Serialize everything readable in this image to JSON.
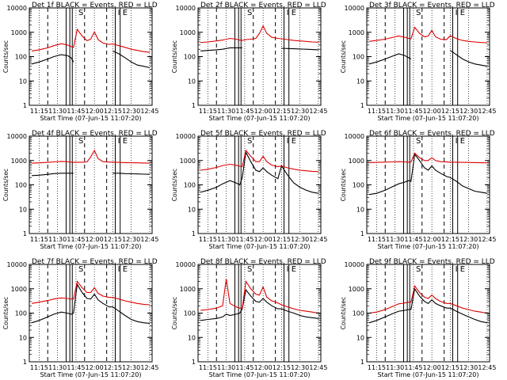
{
  "figure": {
    "xlabel": "Start Time (07-Jun-15 11:07:20)",
    "ylabel": "Counts/sec",
    "xticks": [
      "11:15",
      "11:30",
      "11:45",
      "12:00",
      "12:15",
      "12:30",
      "12:45"
    ],
    "yticks": [
      "1",
      "10",
      "100",
      "1000",
      "10000"
    ],
    "markers": {
      "S": "S",
      "I": "I",
      "E": "E"
    },
    "colors": {
      "events": "#000000",
      "lld": "#dd0000",
      "axes": "#000000"
    }
  },
  "chart_data": [
    {
      "type": "line",
      "title": "Det 1f BLACK = Events, RED = LLD",
      "xlabel": "Start Time (07-Jun-15 11:07:20)",
      "ylabel": "Counts/sec",
      "ylim": [
        1,
        10000
      ],
      "yscale": "log",
      "grid": "dotted vertical",
      "x": [
        "11:09",
        "11:15",
        "11:22",
        "11:27",
        "11:33",
        "11:38",
        "11:41",
        "11:43",
        "11:46",
        "11:50",
        "11:54",
        "11:57",
        "12:00",
        "12:03",
        "12:07",
        "12:12",
        "12:15",
        "12:20",
        "12:25",
        "12:30",
        "12:35",
        "12:40",
        "12:45"
      ],
      "series": [
        {
          "name": "Events",
          "values": [
            50,
            60,
            80,
            100,
            120,
            110,
            90,
            60,
            null,
            null,
            null,
            null,
            null,
            null,
            null,
            null,
            170,
            130,
            90,
            60,
            45,
            40,
            35
          ]
        },
        {
          "name": "LLD",
          "values": [
            170,
            190,
            230,
            280,
            340,
            300,
            260,
            240,
            1300,
            700,
            450,
            520,
            1050,
            500,
            360,
            320,
            330,
            280,
            240,
            200,
            180,
            160,
            150
          ]
        }
      ]
    },
    {
      "type": "line",
      "title": "Det 2f BLACK = Events, RED = LLD",
      "xlabel": "Start Time (07-Jun-15 11:07:20)",
      "ylabel": "Counts/sec",
      "ylim": [
        1,
        10000
      ],
      "yscale": "log",
      "grid": "dotted vertical",
      "x": [
        "11:09",
        "11:15",
        "11:22",
        "11:27",
        "11:33",
        "11:38",
        "11:41",
        "11:43",
        "11:46",
        "11:50",
        "11:54",
        "11:57",
        "12:00",
        "12:03",
        "12:07",
        "12:12",
        "12:15",
        "12:20",
        "12:25",
        "12:30",
        "12:35",
        "12:40",
        "12:45"
      ],
      "series": [
        {
          "name": "Events",
          "values": [
            170,
            180,
            190,
            200,
            230,
            230,
            230,
            230,
            null,
            null,
            null,
            null,
            null,
            null,
            null,
            null,
            220,
            215,
            210,
            205,
            200,
            195,
            190
          ]
        },
        {
          "name": "LLD",
          "values": [
            380,
            400,
            440,
            480,
            560,
            520,
            480,
            460,
            500,
            520,
            560,
            900,
            1800,
            900,
            620,
            560,
            540,
            500,
            460,
            440,
            420,
            400,
            390
          ]
        }
      ]
    },
    {
      "type": "line",
      "title": "Det 3f BLACK = Events, RED = LLD",
      "xlabel": "Start Time (07-Jun-15 11:07:20)",
      "ylabel": "Counts/sec",
      "ylim": [
        1,
        10000
      ],
      "yscale": "log",
      "grid": "dotted vertical",
      "x": [
        "11:09",
        "11:15",
        "11:22",
        "11:27",
        "11:33",
        "11:38",
        "11:41",
        "11:43",
        "11:46",
        "11:50",
        "11:54",
        "11:57",
        "12:00",
        "12:03",
        "12:07",
        "12:12",
        "12:15",
        "12:20",
        "12:25",
        "12:30",
        "12:35",
        "12:40",
        "12:45"
      ],
      "series": [
        {
          "name": "Events",
          "values": [
            50,
            60,
            80,
            100,
            130,
            110,
            90,
            80,
            null,
            null,
            null,
            null,
            null,
            null,
            null,
            null,
            180,
            120,
            80,
            60,
            50,
            45,
            40
          ]
        },
        {
          "name": "LLD",
          "values": [
            420,
            460,
            520,
            600,
            700,
            620,
            560,
            540,
            1600,
            900,
            650,
            700,
            1200,
            650,
            520,
            500,
            720,
            550,
            460,
            420,
            400,
            380,
            370
          ]
        }
      ]
    },
    {
      "type": "line",
      "title": "Det 4f BLACK = Events, RED = LLD",
      "xlabel": "Start Time (07-Jun-15 11:07:20)",
      "ylabel": "Counts/sec",
      "ylim": [
        1,
        10000
      ],
      "yscale": "log",
      "grid": "dotted vertical",
      "x": [
        "11:09",
        "11:15",
        "11:22",
        "11:27",
        "11:33",
        "11:38",
        "11:41",
        "11:43",
        "11:46",
        "11:50",
        "11:54",
        "11:57",
        "12:00",
        "12:03",
        "12:07",
        "12:12",
        "12:15",
        "12:20",
        "12:25",
        "12:30",
        "12:35",
        "12:40",
        "12:45"
      ],
      "series": [
        {
          "name": "Events",
          "values": [
            240,
            250,
            270,
            290,
            300,
            300,
            300,
            300,
            null,
            null,
            null,
            null,
            null,
            null,
            null,
            null,
            300,
            300,
            290,
            285,
            280,
            275,
            270
          ]
        },
        {
          "name": "LLD",
          "values": [
            780,
            800,
            840,
            880,
            920,
            900,
            860,
            840,
            850,
            850,
            880,
            1400,
            2600,
            1200,
            900,
            860,
            860,
            840,
            820,
            810,
            800,
            790,
            780
          ]
        }
      ]
    },
    {
      "type": "line",
      "title": "Det 5f BLACK = Events, RED = LLD",
      "xlabel": "Start Time (07-Jun-15 11:07:20)",
      "ylabel": "Counts/sec",
      "ylim": [
        1,
        10000
      ],
      "yscale": "log",
      "grid": "dotted vertical",
      "x": [
        "11:09",
        "11:15",
        "11:22",
        "11:27",
        "11:33",
        "11:38",
        "11:41",
        "11:43",
        "11:46",
        "11:50",
        "11:54",
        "11:57",
        "12:00",
        "12:03",
        "12:07",
        "12:12",
        "12:15",
        "12:20",
        "12:25",
        "12:30",
        "12:35",
        "12:40",
        "12:45"
      ],
      "series": [
        {
          "name": "Events",
          "values": [
            50,
            60,
            80,
            110,
            150,
            120,
            100,
            200,
            2200,
            900,
            400,
            350,
            500,
            350,
            250,
            180,
            600,
            250,
            120,
            80,
            60,
            50,
            45
          ]
        },
        {
          "name": "LLD",
          "values": [
            400,
            440,
            520,
            620,
            700,
            640,
            580,
            560,
            2600,
            1500,
            900,
            900,
            1500,
            900,
            650,
            560,
            600,
            500,
            440,
            400,
            380,
            360,
            350
          ]
        }
      ]
    },
    {
      "type": "line",
      "title": "Det 6f BLACK = Events, RED = LLD",
      "xlabel": "Start Time (07-Jun-15 11:07:20)",
      "ylabel": "Counts/sec",
      "ylim": [
        1,
        10000
      ],
      "yscale": "log",
      "grid": "dotted vertical",
      "x": [
        "11:09",
        "11:15",
        "11:22",
        "11:27",
        "11:33",
        "11:38",
        "11:41",
        "11:43",
        "11:46",
        "11:50",
        "11:54",
        "11:57",
        "12:00",
        "12:03",
        "12:07",
        "12:12",
        "12:15",
        "12:20",
        "12:25",
        "12:30",
        "12:35",
        "12:40",
        "12:45"
      ],
      "series": [
        {
          "name": "Events",
          "values": [
            40,
            45,
            60,
            80,
            110,
            130,
            150,
            140,
            1800,
            1000,
            500,
            400,
            600,
            400,
            300,
            220,
            200,
            140,
            90,
            70,
            55,
            50,
            45
          ]
        },
        {
          "name": "LLD",
          "values": [
            820,
            840,
            860,
            880,
            900,
            880,
            860,
            860,
            2000,
            1300,
            1000,
            1000,
            1300,
            1000,
            900,
            870,
            860,
            850,
            840,
            830,
            820,
            810,
            800
          ]
        }
      ]
    },
    {
      "type": "line",
      "title": "Det 7f BLACK = Events, RED = LLD",
      "xlabel": "Start Time (07-Jun-15 11:07:20)",
      "ylabel": "Counts/sec",
      "ylim": [
        1,
        10000
      ],
      "yscale": "log",
      "grid": "dotted vertical",
      "x": [
        "11:09",
        "11:15",
        "11:22",
        "11:27",
        "11:33",
        "11:38",
        "11:41",
        "11:43",
        "11:46",
        "11:50",
        "11:54",
        "11:57",
        "12:00",
        "12:03",
        "12:07",
        "12:12",
        "12:15",
        "12:20",
        "12:25",
        "12:30",
        "12:35",
        "12:40",
        "12:45"
      ],
      "series": [
        {
          "name": "Events",
          "values": [
            40,
            50,
            70,
            90,
            110,
            100,
            90,
            100,
            1500,
            700,
            400,
            380,
            600,
            350,
            250,
            180,
            180,
            120,
            80,
            55,
            45,
            40,
            38
          ]
        },
        {
          "name": "LLD",
          "values": [
            250,
            280,
            330,
            380,
            420,
            400,
            380,
            380,
            2000,
            1100,
            700,
            700,
            1100,
            650,
            500,
            440,
            440,
            380,
            320,
            280,
            250,
            230,
            220
          ]
        }
      ]
    },
    {
      "type": "line",
      "title": "Det 8f BLACK = Events, RED = LLD",
      "xlabel": "Start Time (07-Jun-15 11:07:20)",
      "ylabel": "Counts/sec",
      "ylim": [
        1,
        10000
      ],
      "yscale": "log",
      "grid": "dotted vertical",
      "x": [
        "11:09",
        "11:15",
        "11:22",
        "11:27",
        "11:30",
        "11:33",
        "11:38",
        "11:41",
        "11:43",
        "11:46",
        "11:50",
        "11:54",
        "11:57",
        "12:00",
        "12:03",
        "12:07",
        "12:12",
        "12:15",
        "12:20",
        "12:25",
        "12:30",
        "12:35",
        "12:40",
        "12:45"
      ],
      "series": [
        {
          "name": "Events",
          "values": [
            50,
            55,
            60,
            70,
            90,
            80,
            90,
            100,
            150,
            900,
            500,
            300,
            280,
            400,
            280,
            200,
            150,
            150,
            120,
            100,
            80,
            70,
            65,
            60
          ]
        },
        {
          "name": "LLD",
          "values": [
            130,
            140,
            160,
            200,
            2500,
            250,
            180,
            160,
            160,
            2000,
            1000,
            600,
            550,
            1200,
            450,
            320,
            260,
            220,
            180,
            150,
            130,
            120,
            110,
            100
          ]
        }
      ]
    },
    {
      "type": "line",
      "title": "Det 9f BLACK = Events, RED = LLD",
      "xlabel": "Start Time (07-Jun-15 11:07:20)",
      "ylabel": "Counts/sec",
      "ylim": [
        1,
        10000
      ],
      "yscale": "log",
      "grid": "dotted vertical",
      "x": [
        "11:09",
        "11:15",
        "11:22",
        "11:27",
        "11:33",
        "11:38",
        "11:41",
        "11:43",
        "11:46",
        "11:50",
        "11:54",
        "11:57",
        "12:00",
        "12:03",
        "12:07",
        "12:12",
        "12:15",
        "12:20",
        "12:25",
        "12:30",
        "12:35",
        "12:40",
        "12:45"
      ],
      "series": [
        {
          "name": "Events",
          "values": [
            40,
            50,
            70,
            90,
            120,
            130,
            140,
            140,
            1000,
            500,
            300,
            250,
            350,
            250,
            200,
            160,
            160,
            120,
            90,
            70,
            55,
            45,
            40
          ]
        },
        {
          "name": "LLD",
          "values": [
            100,
            110,
            140,
            180,
            240,
            260,
            280,
            280,
            1300,
            700,
            450,
            400,
            550,
            400,
            300,
            250,
            250,
            200,
            160,
            140,
            120,
            110,
            100
          ]
        }
      ]
    }
  ]
}
